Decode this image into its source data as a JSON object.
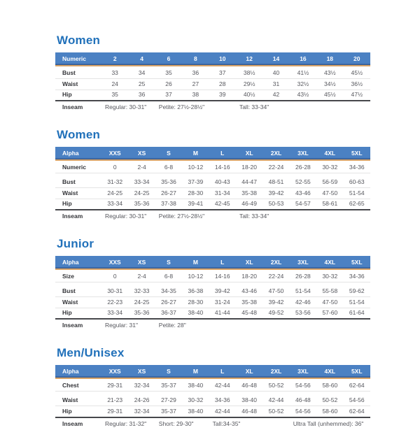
{
  "colors": {
    "header_bg": "#4b81c3",
    "header_bg_dark_edge": "#2e5288",
    "accent_line": "#d9a468",
    "title_text": "#2171ba",
    "header_text": "#ffffff",
    "row_label_text": "#333438",
    "value_text": "#55565c",
    "thin_divider": "#e4e4e4",
    "thick_divider": "#46474b"
  },
  "tables": [
    {
      "title": "Women",
      "header": [
        "Numeric",
        "2",
        "4",
        "6",
        "8",
        "10",
        "12",
        "14",
        "16",
        "18",
        "20"
      ],
      "rows": [
        {
          "label": "Bust",
          "values": [
            "33",
            "34",
            "35",
            "36",
            "37",
            "38½",
            "40",
            "41½",
            "43½",
            "45½"
          ]
        },
        {
          "label": "Waist",
          "values": [
            "24",
            "25",
            "26",
            "27",
            "28",
            "29½",
            "31",
            "32½",
            "34½",
            "36½"
          ]
        },
        {
          "label": "Hip",
          "values": [
            "35",
            "36",
            "37",
            "38",
            "39",
            "40½",
            "42",
            "43½",
            "45½",
            "47½"
          ]
        }
      ],
      "inseam": {
        "label": "Inseam",
        "entries": [
          {
            "text": "Regular: 30-31\"",
            "span": 2
          },
          {
            "text": "Petite: 27½-28½\"",
            "span": 3
          },
          {
            "text": "Tall: 33-34\"",
            "span": 5
          }
        ]
      }
    },
    {
      "title": "Women",
      "header": [
        "Alpha",
        "XXS",
        "XS",
        "S",
        "M",
        "L",
        "XL",
        "2XL",
        "3XL",
        "4XL",
        "5XL"
      ],
      "rows": [
        {
          "label": "Numeric",
          "values": [
            "0",
            "2-4",
            "6-8",
            "10-12",
            "14-16",
            "18-20",
            "22-24",
            "26-28",
            "30-32",
            "34-36"
          ]
        },
        {
          "label": "Bust",
          "group_start": true,
          "values": [
            "31-32",
            "33-34",
            "35-36",
            "37-39",
            "40-43",
            "44-47",
            "48-51",
            "52-55",
            "56-59",
            "60-63"
          ]
        },
        {
          "label": "Waist",
          "values": [
            "24-25",
            "24-25",
            "26-27",
            "28-30",
            "31-34",
            "35-38",
            "39-42",
            "43-46",
            "47-50",
            "51-54"
          ]
        },
        {
          "label": "Hip",
          "values": [
            "33-34",
            "35-36",
            "37-38",
            "39-41",
            "42-45",
            "46-49",
            "50-53",
            "54-57",
            "58-61",
            "62-65"
          ]
        }
      ],
      "inseam": {
        "label": "Inseam",
        "entries": [
          {
            "text": "Regular: 30-31\"",
            "span": 2
          },
          {
            "text": "Petite: 27½-28½\"",
            "span": 3
          },
          {
            "text": "Tall: 33-34\"",
            "span": 5
          }
        ]
      }
    },
    {
      "title": "Junior",
      "header": [
        "Alpha",
        "XXS",
        "XS",
        "S",
        "M",
        "L",
        "XL",
        "2XL",
        "3XL",
        "4XL",
        "5XL"
      ],
      "rows": [
        {
          "label": "Size",
          "values": [
            "0",
            "2-4",
            "6-8",
            "10-12",
            "14-16",
            "18-20",
            "22-24",
            "26-28",
            "30-32",
            "34-36"
          ]
        },
        {
          "label": "Bust",
          "group_start": true,
          "values": [
            "30-31",
            "32-33",
            "34-35",
            "36-38",
            "39-42",
            "43-46",
            "47-50",
            "51-54",
            "55-58",
            "59-62"
          ]
        },
        {
          "label": "Waist",
          "values": [
            "22-23",
            "24-25",
            "26-27",
            "28-30",
            "31-24",
            "35-38",
            "39-42",
            "42-46",
            "47-50",
            "51-54"
          ]
        },
        {
          "label": "Hip",
          "values": [
            "33-34",
            "35-36",
            "36-37",
            "38-40",
            "41-44",
            "45-48",
            "49-52",
            "53-56",
            "57-60",
            "61-64"
          ]
        }
      ],
      "inseam": {
        "label": "Inseam",
        "entries": [
          {
            "text": "Regular: 31\"",
            "span": 2
          },
          {
            "text": "Petite: 28\"",
            "span": 3
          }
        ]
      }
    },
    {
      "title": "Men/Unisex",
      "header": [
        "Alpha",
        "XXS",
        "XS",
        "S",
        "M",
        "L",
        "XL",
        "2XL",
        "3XL",
        "4XL",
        "5XL"
      ],
      "rows": [
        {
          "label": "Chest",
          "values": [
            "29-31",
            "32-34",
            "35-37",
            "38-40",
            "42-44",
            "46-48",
            "50-52",
            "54-56",
            "58-60",
            "62-64"
          ]
        },
        {
          "label": "Waist",
          "group_start": true,
          "values": [
            "21-23",
            "24-26",
            "27-29",
            "30-32",
            "34-36",
            "38-40",
            "42-44",
            "46-48",
            "50-52",
            "54-56"
          ]
        },
        {
          "label": "Hip",
          "values": [
            "29-31",
            "32-34",
            "35-37",
            "38-40",
            "42-44",
            "46-48",
            "50-52",
            "54-56",
            "58-60",
            "62-64"
          ]
        }
      ],
      "inseam": {
        "label": "Inseam",
        "entries": [
          {
            "text": "Regular: 31-32\"",
            "span": 2
          },
          {
            "text": "Short: 29-30\"",
            "span": 2
          },
          {
            "text": "Tall:34-35\"",
            "span": 3
          },
          {
            "text": "Ultra Tall (unhemmed): 36\"",
            "span": 3
          }
        ]
      }
    }
  ]
}
